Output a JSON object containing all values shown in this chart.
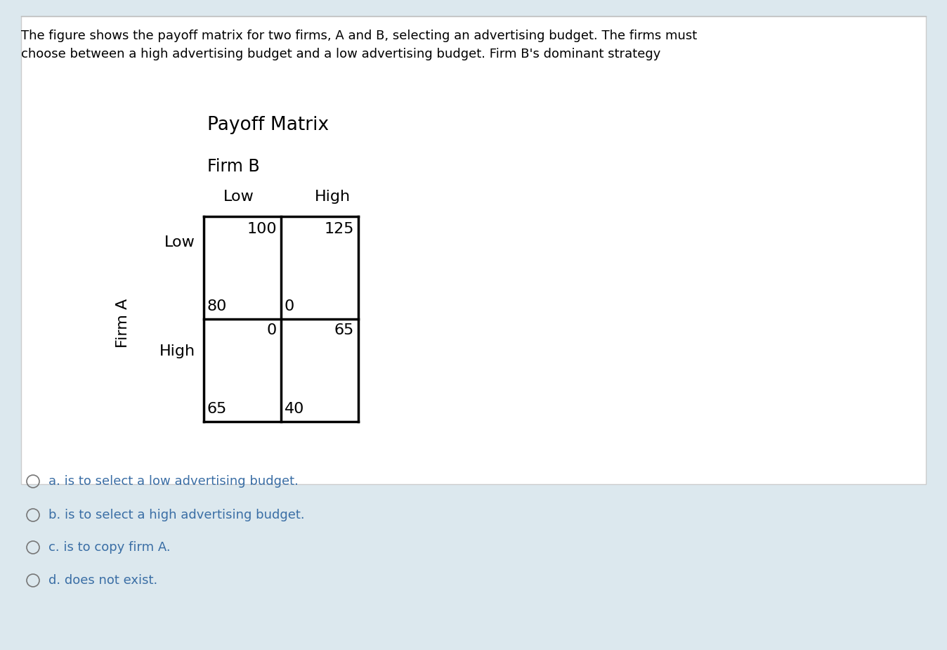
{
  "title": "Payoff Matrix",
  "header_text": "The figure shows the payoff matrix for two firms, A and B, selecting an advertising budget. The firms must\nchoose between a high advertising budget and a low advertising budget. Firm B's dominant strategy",
  "firm_b_label": "Firm B",
  "firm_a_label": "Firm A",
  "col_labels": [
    "Low",
    "High"
  ],
  "row_labels": [
    "Low",
    "High"
  ],
  "options": [
    "a. is to select a low advertising budget.",
    "b. is to select a high advertising budget.",
    "c. is to copy firm A.",
    "d. does not exist."
  ],
  "bg_color_outer": "#dce8ee",
  "bg_color_inner": "#ffffff",
  "text_color_main": "#000000",
  "text_color_options": "#3a6ea5",
  "header_font_size": 13.0,
  "title_font_size": 19,
  "firmb_font_size": 17,
  "label_font_size": 16,
  "cell_font_size": 16,
  "option_font_size": 13,
  "cell_tr": [
    "100",
    "125",
    "0",
    "65"
  ],
  "cell_bl": [
    "80",
    "0",
    "65",
    "40"
  ]
}
